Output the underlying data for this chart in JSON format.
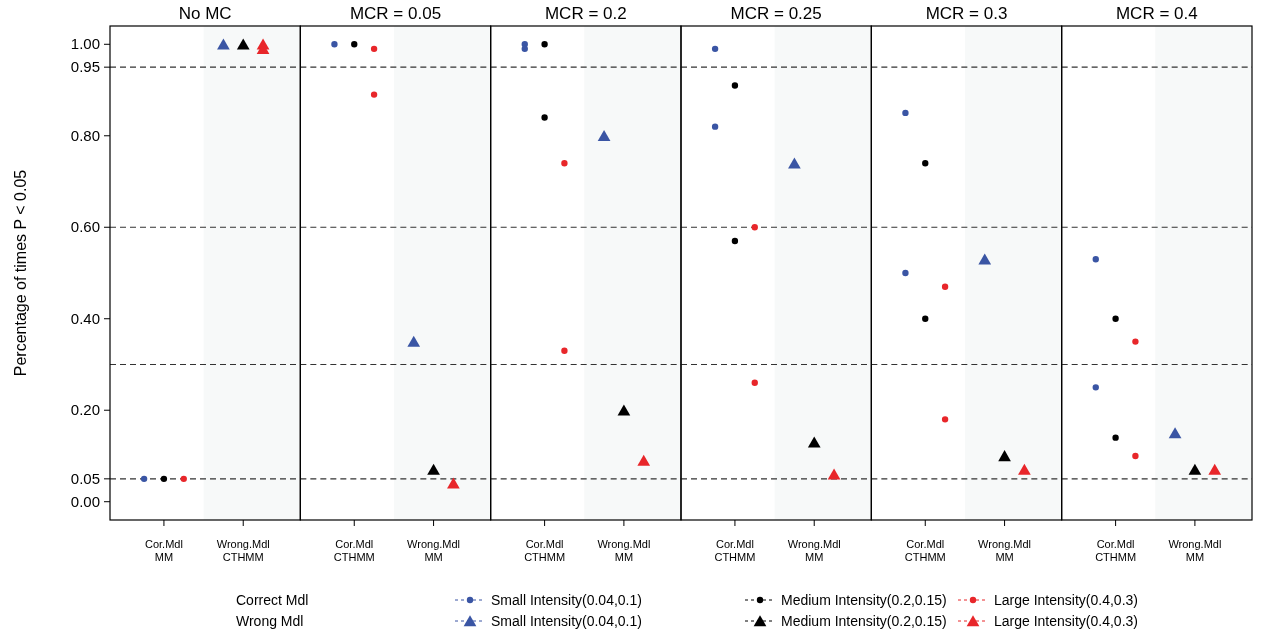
{
  "chart_data": [
    {
      "type": "scatter",
      "title": "No MC",
      "ylabel": "Percentage of times P < 0.05",
      "categories": [
        "Cor.Mdl\nMM",
        "Wrong.Mdl\nCTHMM"
      ],
      "legend": "bottom",
      "annotations": [
        "Correct Mdl",
        "Wrong Mdl"
      ],
      "ylim": [
        -0.04,
        1.04
      ],
      "yticks": [
        {
          "value": 0,
          "label": "0.00"
        },
        {
          "value": 0.05,
          "label": "0.05"
        },
        {
          "value": 0.2,
          "label": "0.20"
        },
        {
          "value": 0.4,
          "label": "0.40"
        },
        {
          "value": 0.6,
          "label": "0.60"
        },
        {
          "value": 0.8,
          "label": "0.80"
        },
        {
          "value": 0.95,
          "label": "0.95"
        },
        {
          "value": 1,
          "label": "1.00"
        }
      ],
      "ref_lines": [
        {
          "axis": "y",
          "value": 0.05,
          "line_style": "dashed"
        },
        {
          "axis": "y",
          "value": 0.3,
          "line_style": "dashed"
        },
        {
          "axis": "y",
          "value": 0.6,
          "line_style": "dashed"
        },
        {
          "axis": "y",
          "value": 0.95,
          "line_style": "dashed"
        }
      ],
      "series": [
        {
          "name": "Small Intensity(0.04,0.1)",
          "color": "#3a55a4",
          "marker": "circle",
          "x": [
            "Cor.Mdl\nMM"
          ],
          "values": [
            0.05
          ]
        },
        {
          "name": "Medium Intensity(0.2,0.15)",
          "color": "#000000",
          "marker": "circle",
          "x": [
            "Cor.Mdl\nMM"
          ],
          "values": [
            0.05
          ]
        },
        {
          "name": "Large Intensity(0.4,0.3)",
          "color": "#e8262a",
          "marker": "circle",
          "x": [
            "Cor.Mdl\nMM"
          ],
          "values": [
            0.05
          ]
        },
        {
          "name": "Small Intensity(0.04,0.1)",
          "color": "#3a55a4",
          "marker": "triangle",
          "x": [
            "Wrong.Mdl\nCTHMM"
          ],
          "values": [
            1.0
          ]
        },
        {
          "name": "Medium Intensity(0.2,0.15)",
          "color": "#000000",
          "marker": "triangle",
          "x": [
            "Wrong.Mdl\nCTHMM"
          ],
          "values": [
            1.0
          ]
        },
        {
          "name": "Large Intensity(0.4,0.3)",
          "color": "#e8262a",
          "marker": "triangle",
          "x": [
            "Wrong.Mdl\nCTHMM",
            "Wrong.Mdl\nCTHMM"
          ],
          "values": [
            1.0,
            0.99
          ]
        }
      ]
    },
    {
      "type": "scatter",
      "title": "MCR = 0.05",
      "categories": [
        "Cor.Mdl\nCTHMM",
        "Wrong.Mdl\nMM"
      ],
      "tick_labels": "x",
      "ylim": [
        -0.04,
        1.04
      ],
      "ref_lines": [
        {
          "axis": "y",
          "value": 0.05,
          "line_style": "dashed"
        },
        {
          "axis": "y",
          "value": 0.3,
          "line_style": "dashed"
        },
        {
          "axis": "y",
          "value": 0.6,
          "line_style": "dashed"
        },
        {
          "axis": "y",
          "value": 0.95,
          "line_style": "dashed"
        }
      ],
      "series": [
        {
          "color": "#3a55a4",
          "marker": "circle",
          "x": [
            "Cor.Mdl\nCTHMM"
          ],
          "values": [
            1.0
          ]
        },
        {
          "color": "#000000",
          "marker": "circle",
          "x": [
            "Cor.Mdl\nCTHMM"
          ],
          "values": [
            1.0
          ]
        },
        {
          "color": "#e8262a",
          "marker": "circle",
          "x": [
            "Cor.Mdl\nCTHMM",
            "Cor.Mdl\nCTHMM"
          ],
          "values": [
            0.99,
            0.89
          ]
        },
        {
          "color": "#3a55a4",
          "marker": "triangle",
          "x": [
            "Wrong.Mdl\nMM"
          ],
          "values": [
            0.35
          ]
        },
        {
          "color": "#000000",
          "marker": "triangle",
          "x": [
            "Wrong.Mdl\nMM"
          ],
          "values": [
            0.07
          ]
        },
        {
          "color": "#e8262a",
          "marker": "triangle",
          "x": [
            "Wrong.Mdl\nMM"
          ],
          "values": [
            0.04
          ]
        }
      ]
    },
    {
      "type": "scatter",
      "title": "MCR = 0.2",
      "categories": [
        "Cor.Mdl\nCTHMM",
        "Wrong.Mdl\nMM"
      ],
      "tick_labels": "x",
      "ylim": [
        -0.04,
        1.04
      ],
      "ref_lines": [
        {
          "axis": "y",
          "value": 0.05,
          "line_style": "dashed"
        },
        {
          "axis": "y",
          "value": 0.3,
          "line_style": "dashed"
        },
        {
          "axis": "y",
          "value": 0.6,
          "line_style": "dashed"
        },
        {
          "axis": "y",
          "value": 0.95,
          "line_style": "dashed"
        }
      ],
      "series": [
        {
          "color": "#3a55a4",
          "marker": "circle",
          "x": [
            "Cor.Mdl\nCTHMM",
            "Cor.Mdl\nCTHMM"
          ],
          "values": [
            1.0,
            0.99
          ]
        },
        {
          "color": "#000000",
          "marker": "circle",
          "x": [
            "Cor.Mdl\nCTHMM",
            "Cor.Mdl\nCTHMM"
          ],
          "values": [
            1.0,
            0.84
          ]
        },
        {
          "color": "#e8262a",
          "marker": "circle",
          "x": [
            "Cor.Mdl\nCTHMM",
            "Cor.Mdl\nCTHMM"
          ],
          "values": [
            0.74,
            0.33
          ]
        },
        {
          "color": "#3a55a4",
          "marker": "triangle",
          "x": [
            "Wrong.Mdl\nMM"
          ],
          "values": [
            0.8
          ]
        },
        {
          "color": "#000000",
          "marker": "triangle",
          "x": [
            "Wrong.Mdl\nMM"
          ],
          "values": [
            0.2
          ]
        },
        {
          "color": "#e8262a",
          "marker": "triangle",
          "x": [
            "Wrong.Mdl\nMM"
          ],
          "values": [
            0.09
          ]
        }
      ]
    },
    {
      "type": "scatter",
      "title": "MCR = 0.25",
      "categories": [
        "Cor.Mdl\nCTHMM",
        "Wrong.Mdl\nMM"
      ],
      "tick_labels": "x",
      "ylim": [
        -0.04,
        1.04
      ],
      "ref_lines": [
        {
          "axis": "y",
          "value": 0.05,
          "line_style": "dashed"
        },
        {
          "axis": "y",
          "value": 0.3,
          "line_style": "dashed"
        },
        {
          "axis": "y",
          "value": 0.6,
          "line_style": "dashed"
        },
        {
          "axis": "y",
          "value": 0.95,
          "line_style": "dashed"
        }
      ],
      "series": [
        {
          "color": "#3a55a4",
          "marker": "circle",
          "x": [
            "Cor.Mdl\nCTHMM",
            "Cor.Mdl\nCTHMM"
          ],
          "values": [
            0.99,
            0.82
          ]
        },
        {
          "color": "#000000",
          "marker": "circle",
          "x": [
            "Cor.Mdl\nCTHMM",
            "Cor.Mdl\nCTHMM"
          ],
          "values": [
            0.91,
            0.57
          ]
        },
        {
          "color": "#e8262a",
          "marker": "circle",
          "x": [
            "Cor.Mdl\nCTHMM",
            "Cor.Mdl\nCTHMM"
          ],
          "values": [
            0.6,
            0.26
          ]
        },
        {
          "color": "#3a55a4",
          "marker": "triangle",
          "x": [
            "Wrong.Mdl\nMM"
          ],
          "values": [
            0.74
          ]
        },
        {
          "color": "#000000",
          "marker": "triangle",
          "x": [
            "Wrong.Mdl\nMM"
          ],
          "values": [
            0.13
          ]
        },
        {
          "color": "#e8262a",
          "marker": "triangle",
          "x": [
            "Wrong.Mdl\nMM"
          ],
          "values": [
            0.06
          ]
        }
      ]
    },
    {
      "type": "scatter",
      "title": "MCR = 0.3",
      "categories": [
        "Cor.Mdl\nCTHMM",
        "Wrong.Mdl\nMM"
      ],
      "tick_labels": "x",
      "ylim": [
        -0.04,
        1.04
      ],
      "ref_lines": [
        {
          "axis": "y",
          "value": 0.05,
          "line_style": "dashed"
        },
        {
          "axis": "y",
          "value": 0.3,
          "line_style": "dashed"
        },
        {
          "axis": "y",
          "value": 0.6,
          "line_style": "dashed"
        },
        {
          "axis": "y",
          "value": 0.95,
          "line_style": "dashed"
        }
      ],
      "series": [
        {
          "color": "#3a55a4",
          "marker": "circle",
          "x": [
            "Cor.Mdl\nCTHMM",
            "Cor.Mdl\nCTHMM"
          ],
          "values": [
            0.85,
            0.5
          ]
        },
        {
          "color": "#000000",
          "marker": "circle",
          "x": [
            "Cor.Mdl\nCTHMM",
            "Cor.Mdl\nCTHMM"
          ],
          "values": [
            0.74,
            0.4
          ]
        },
        {
          "color": "#e8262a",
          "marker": "circle",
          "x": [
            "Cor.Mdl\nCTHMM",
            "Cor.Mdl\nCTHMM"
          ],
          "values": [
            0.47,
            0.18
          ]
        },
        {
          "color": "#3a55a4",
          "marker": "triangle",
          "x": [
            "Wrong.Mdl\nMM"
          ],
          "values": [
            0.53
          ]
        },
        {
          "color": "#000000",
          "marker": "triangle",
          "x": [
            "Wrong.Mdl\nMM"
          ],
          "values": [
            0.1
          ]
        },
        {
          "color": "#e8262a",
          "marker": "triangle",
          "x": [
            "Wrong.Mdl\nMM"
          ],
          "values": [
            0.07
          ]
        }
      ]
    },
    {
      "type": "scatter",
      "title": "MCR = 0.4",
      "categories": [
        "Cor.Mdl\nCTHMM",
        "Wrong.Mdl\nMM"
      ],
      "tick_labels": "x",
      "ylim": [
        -0.04,
        1.04
      ],
      "ref_lines": [
        {
          "axis": "y",
          "value": 0.05,
          "line_style": "dashed"
        },
        {
          "axis": "y",
          "value": 0.3,
          "line_style": "dashed"
        },
        {
          "axis": "y",
          "value": 0.6,
          "line_style": "dashed"
        },
        {
          "axis": "y",
          "value": 0.95,
          "line_style": "dashed"
        }
      ],
      "series": [
        {
          "color": "#3a55a4",
          "marker": "circle",
          "x": [
            "Cor.Mdl\nCTHMM",
            "Cor.Mdl\nCTHMM"
          ],
          "values": [
            0.53,
            0.25
          ]
        },
        {
          "color": "#000000",
          "marker": "circle",
          "x": [
            "Cor.Mdl\nCTHMM",
            "Cor.Mdl\nCTHMM"
          ],
          "values": [
            0.4,
            0.14
          ]
        },
        {
          "color": "#e8262a",
          "marker": "circle",
          "x": [
            "Cor.Mdl\nCTHMM",
            "Cor.Mdl\nCTHMM"
          ],
          "values": [
            0.35,
            0.1
          ]
        },
        {
          "color": "#3a55a4",
          "marker": "triangle",
          "x": [
            "Wrong.Mdl\nMM"
          ],
          "values": [
            0.15
          ]
        },
        {
          "color": "#000000",
          "marker": "triangle",
          "x": [
            "Wrong.Mdl\nMM"
          ],
          "values": [
            0.07
          ]
        },
        {
          "color": "#e8262a",
          "marker": "triangle",
          "x": [
            "Wrong.Mdl\nMM"
          ],
          "values": [
            0.07
          ]
        }
      ]
    }
  ]
}
